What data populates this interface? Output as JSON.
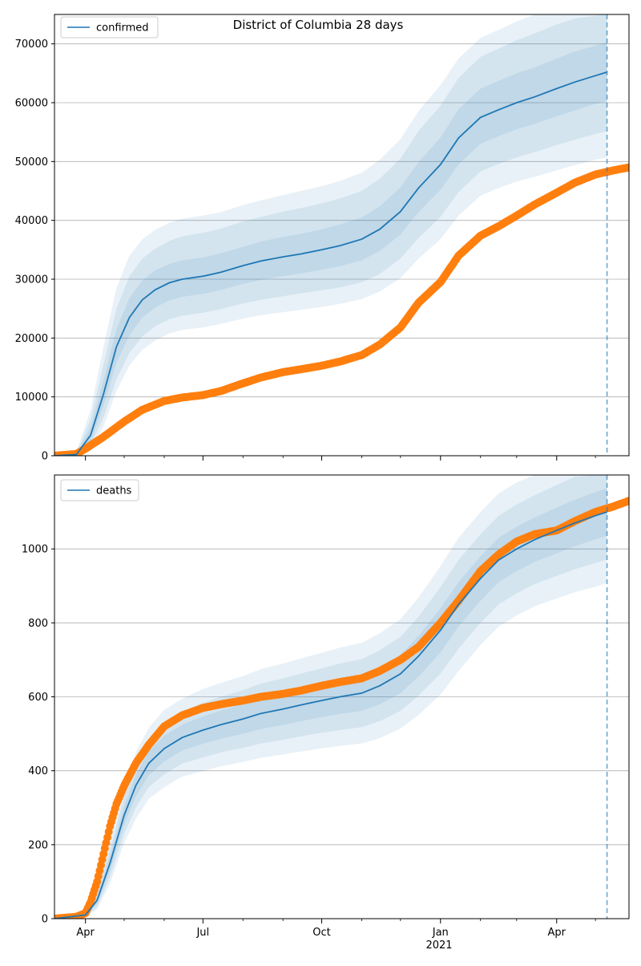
{
  "title": "District of Columbia 28 days",
  "colors": {
    "model": "#1f77b4",
    "observed": "#ff7f0e",
    "band": "#1f77b4",
    "grid": "#b0b0b0"
  },
  "x_axis": {
    "domain": [
      "2020-03-08",
      "2021-05-27"
    ],
    "ticks": [
      {
        "date": "2020-04-01",
        "label": "Apr"
      },
      {
        "date": "2020-07-01",
        "label": "Jul"
      },
      {
        "date": "2020-10-01",
        "label": "Oct"
      },
      {
        "date": "2021-01-01",
        "label": "Jan"
      },
      {
        "date": "2021-04-01",
        "label": "Apr"
      }
    ],
    "year_label": "2021",
    "minor_ticks": [
      "2020-05-01",
      "2020-06-01",
      "2020-08-01",
      "2020-09-01",
      "2020-11-01",
      "2020-12-01",
      "2021-02-01",
      "2021-03-01",
      "2021-05-01"
    ],
    "forecast_date": "2021-05-10"
  },
  "chart_data": [
    {
      "type": "line",
      "legend": "confirmed",
      "legend_position": "top-left",
      "ylim": [
        0,
        75000
      ],
      "yticks": [
        0,
        10000,
        20000,
        30000,
        40000,
        50000,
        60000,
        70000
      ],
      "grid": "horizontal",
      "model": {
        "x": [
          "2020-03-08",
          "2020-03-25",
          "2020-04-05",
          "2020-04-15",
          "2020-04-25",
          "2020-05-05",
          "2020-05-15",
          "2020-05-25",
          "2020-06-05",
          "2020-06-15",
          "2020-07-01",
          "2020-07-15",
          "2020-08-01",
          "2020-08-15",
          "2020-09-01",
          "2020-09-15",
          "2020-10-01",
          "2020-10-15",
          "2020-11-01",
          "2020-11-15",
          "2020-12-01",
          "2020-12-15",
          "2021-01-01",
          "2021-01-15",
          "2021-02-01",
          "2021-02-15",
          "2021-03-01",
          "2021-03-15",
          "2021-04-01",
          "2021-04-15",
          "2021-05-01",
          "2021-05-10"
        ],
        "y": [
          0,
          200,
          3500,
          10500,
          18500,
          23500,
          26500,
          28200,
          29400,
          30000,
          30500,
          31200,
          32300,
          33100,
          33800,
          34300,
          35000,
          35700,
          36800,
          38500,
          41500,
          45500,
          49500,
          54000,
          57500,
          58800,
          60000,
          61000,
          62400,
          63500,
          64600,
          65200
        ],
        "bands": [
          {
            "lo": [
              0,
              100,
              2500,
              8500,
              15800,
              20500,
              23500,
              25200,
              26400,
              27000,
              27500,
              28200,
              29200,
              29900,
              30500,
              31000,
              31600,
              32200,
              33200,
              34800,
              37600,
              41400,
              45200,
              49500,
              53000,
              54300,
              55500,
              56400,
              57700,
              58700,
              59800,
              60300
            ],
            "hi": [
              0,
              350,
              4800,
              12800,
              21500,
              26800,
              29800,
              31500,
              32600,
              33200,
              33700,
              34400,
              35500,
              36400,
              37200,
              37700,
              38500,
              39300,
              40500,
              42400,
              45600,
              49900,
              54100,
              58900,
              62400,
              63700,
              65000,
              66000,
              67500,
              68700,
              69700,
              70300
            ]
          },
          {
            "lo": [
              0,
              50,
              1800,
              6500,
              13000,
              17500,
              20300,
              22000,
              23200,
              23800,
              24300,
              24900,
              25900,
              26500,
              27100,
              27600,
              28100,
              28600,
              29500,
              30900,
              33500,
              37000,
              40600,
              44800,
              48300,
              49600,
              50700,
              51600,
              52800,
              53700,
              54700,
              55200
            ],
            "hi": [
              0,
              500,
              6200,
              15500,
              25000,
              30500,
              33500,
              35200,
              36500,
              37300,
              37900,
              38600,
              39800,
              40600,
              41500,
              42100,
              42900,
              43700,
              45000,
              47100,
              50500,
              55200,
              59500,
              64200,
              67800,
              69200,
              70600,
              71800,
              73300,
              74300,
              74800,
              75000
            ]
          },
          {
            "lo": [
              0,
              20,
              1200,
              5000,
              11000,
              15300,
              18000,
              19600,
              20800,
              21400,
              21800,
              22400,
              23300,
              23900,
              24400,
              24800,
              25300,
              25800,
              26600,
              27900,
              30200,
              33500,
              36800,
              40800,
              44200,
              45500,
              46600,
              47400,
              48500,
              49400,
              50300,
              50700
            ],
            "hi": [
              0,
              700,
              7800,
              18500,
              28500,
              34000,
              36800,
              38400,
              39600,
              40300,
              40800,
              41400,
              42600,
              43400,
              44300,
              45000,
              45800,
              46700,
              48100,
              50300,
              53800,
              58600,
              63000,
              67500,
              71000,
              72400,
              73800,
              75000,
              75000,
              75000,
              75000,
              75000
            ]
          }
        ]
      },
      "observed": {
        "x": [
          "2020-03-08",
          "2020-03-25",
          "2020-04-01",
          "2020-04-15",
          "2020-05-01",
          "2020-05-15",
          "2020-06-01",
          "2020-06-15",
          "2020-07-01",
          "2020-07-15",
          "2020-08-01",
          "2020-08-15",
          "2020-09-01",
          "2020-09-15",
          "2020-10-01",
          "2020-10-15",
          "2020-11-01",
          "2020-11-15",
          "2020-12-01",
          "2020-12-15",
          "2021-01-01",
          "2021-01-15",
          "2021-02-01",
          "2021-02-15",
          "2021-03-01",
          "2021-03-15",
          "2021-04-01",
          "2021-04-15",
          "2021-05-01",
          "2021-05-15",
          "2021-05-27"
        ],
        "y": [
          0,
          300,
          1200,
          3200,
          5800,
          7800,
          9300,
          9900,
          10300,
          11000,
          12300,
          13300,
          14200,
          14700,
          15300,
          16000,
          17100,
          18900,
          21800,
          26000,
          29500,
          34000,
          37400,
          39000,
          40800,
          42700,
          44700,
          46400,
          47800,
          48500,
          49000
        ]
      }
    },
    {
      "type": "line",
      "legend": "deaths",
      "legend_position": "top-left",
      "ylim": [
        0,
        1200
      ],
      "yticks": [
        0,
        200,
        400,
        600,
        800,
        1000
      ],
      "grid": "horizontal",
      "model": {
        "x": [
          "2020-03-08",
          "2020-04-01",
          "2020-04-10",
          "2020-04-20",
          "2020-05-01",
          "2020-05-10",
          "2020-05-20",
          "2020-06-01",
          "2020-06-15",
          "2020-07-01",
          "2020-07-15",
          "2020-08-01",
          "2020-08-15",
          "2020-09-01",
          "2020-09-15",
          "2020-10-01",
          "2020-10-15",
          "2020-11-01",
          "2020-11-15",
          "2020-12-01",
          "2020-12-15",
          "2021-01-01",
          "2021-01-15",
          "2021-02-01",
          "2021-02-15",
          "2021-03-01",
          "2021-03-15",
          "2021-04-01",
          "2021-04-15",
          "2021-05-01",
          "2021-05-10"
        ],
        "y": [
          0,
          10,
          50,
          150,
          280,
          360,
          420,
          460,
          490,
          510,
          525,
          540,
          555,
          567,
          578,
          590,
          600,
          610,
          630,
          662,
          710,
          780,
          850,
          920,
          970,
          1000,
          1025,
          1050,
          1070,
          1090,
          1100
        ],
        "bands": [
          {
            "lo": [
              0,
              8,
              40,
              130,
              255,
              330,
              388,
              425,
              455,
              473,
              487,
              500,
              513,
              524,
              534,
              545,
              554,
              562,
              580,
              610,
              655,
              720,
              790,
              860,
              910,
              940,
              965,
              988,
              1007,
              1026,
              1036
            ],
            "hi": [
              0,
              13,
              60,
              170,
              305,
              390,
              452,
              495,
              525,
              547,
              563,
              580,
              597,
              610,
              622,
              635,
              646,
              658,
              680,
              714,
              765,
              840,
              910,
              980,
              1030,
              1060,
              1085,
              1112,
              1133,
              1154,
              1164
            ]
          },
          {
            "lo": [
              0,
              6,
              32,
              112,
              230,
              300,
              356,
              390,
              420,
              436,
              450,
              462,
              474,
              484,
              493,
              503,
              510,
              518,
              534,
              562,
              603,
              663,
              730,
              800,
              850,
              880,
              905,
              927,
              945,
              962,
              972
            ],
            "hi": [
              0,
              15,
              70,
              190,
              330,
              420,
              484,
              530,
              560,
              584,
              600,
              618,
              636,
              650,
              663,
              677,
              690,
              702,
              726,
              762,
              817,
              897,
              970,
              1040,
              1090,
              1120,
              1145,
              1173,
              1195,
              1200,
              1200
            ]
          },
          {
            "lo": [
              0,
              4,
              25,
              95,
              205,
              270,
              324,
              355,
              385,
              399,
              412,
              424,
              435,
              444,
              452,
              461,
              467,
              474,
              488,
              514,
              551,
              606,
              670,
              740,
              790,
              820,
              845,
              866,
              883,
              898,
              908
            ],
            "hi": [
              0,
              18,
              80,
              210,
              355,
              450,
              516,
              565,
              595,
              621,
              638,
              656,
              675,
              690,
              704,
              719,
              733,
              746,
              772,
              810,
              869,
              954,
              1030,
              1100,
              1150,
              1180,
              1200,
              1200,
              1200,
              1200,
              1200
            ]
          }
        ]
      },
      "observed": {
        "x": [
          "2020-03-08",
          "2020-03-25",
          "2020-04-01",
          "2020-04-05",
          "2020-04-10",
          "2020-04-15",
          "2020-04-20",
          "2020-04-25",
          "2020-05-01",
          "2020-05-10",
          "2020-05-20",
          "2020-06-01",
          "2020-06-15",
          "2020-07-01",
          "2020-07-15",
          "2020-08-01",
          "2020-08-15",
          "2020-09-01",
          "2020-09-15",
          "2020-10-01",
          "2020-10-15",
          "2020-11-01",
          "2020-11-15",
          "2020-12-01",
          "2020-12-15",
          "2021-01-01",
          "2021-01-15",
          "2021-02-01",
          "2021-02-15",
          "2021-03-01",
          "2021-03-15",
          "2021-04-01",
          "2021-04-15",
          "2021-05-01",
          "2021-05-15",
          "2021-05-27"
        ],
        "y": [
          0,
          5,
          15,
          45,
          100,
          175,
          250,
          310,
          360,
          420,
          470,
          520,
          550,
          570,
          580,
          590,
          600,
          608,
          617,
          630,
          640,
          650,
          670,
          700,
          735,
          800,
          860,
          940,
          985,
          1020,
          1040,
          1050,
          1075,
          1100,
          1115,
          1130
        ]
      }
    }
  ]
}
